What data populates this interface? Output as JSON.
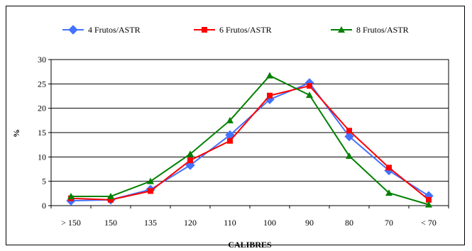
{
  "chart_data": {
    "type": "line",
    "categories": [
      "> 150",
      "150",
      "135",
      "120",
      "110",
      "100",
      "90",
      "80",
      "70",
      "< 70"
    ],
    "series": [
      {
        "name": "4 Frutos/ASTR",
        "color": "#4472ff",
        "marker": "diamond",
        "values": [
          1.0,
          1.2,
          3.3,
          8.3,
          14.5,
          21.8,
          25.2,
          14.2,
          7.2,
          2.0
        ]
      },
      {
        "name": "6 Frutos/ASTR",
        "color": "#ff0000",
        "marker": "square",
        "values": [
          1.5,
          1.2,
          3.0,
          9.3,
          13.3,
          22.6,
          24.6,
          15.4,
          7.8,
          1.2
        ]
      },
      {
        "name": "8 Frutos/ASTR",
        "color": "#008000",
        "marker": "triangle",
        "values": [
          1.9,
          1.9,
          5.0,
          10.6,
          17.5,
          26.7,
          22.7,
          10.2,
          2.6,
          0.2
        ]
      }
    ],
    "xlabel": "CALIBRES",
    "ylabel": "%",
    "ylim": [
      0,
      30
    ],
    "yticks": [
      0,
      5,
      10,
      15,
      20,
      25,
      30
    ],
    "grid": true,
    "legend": "top"
  }
}
